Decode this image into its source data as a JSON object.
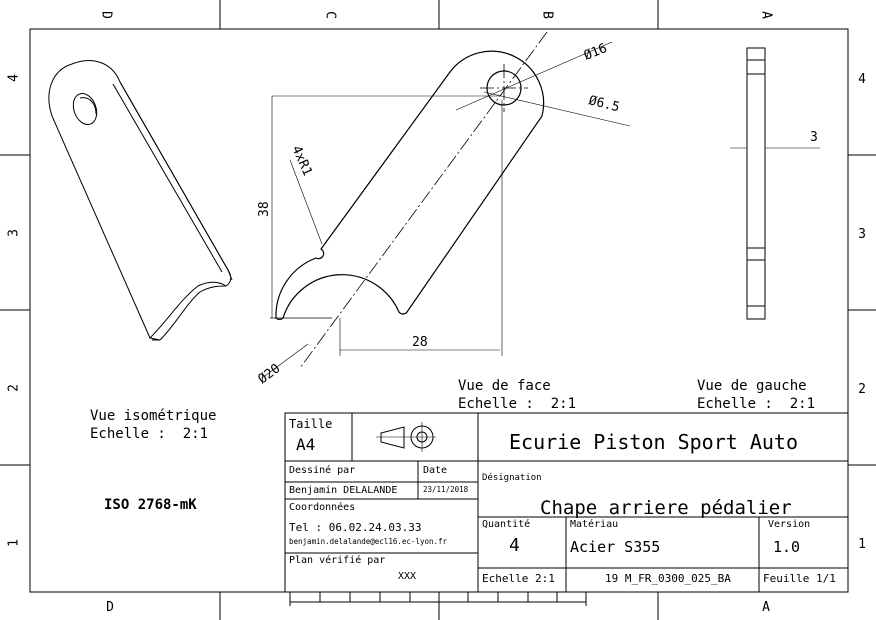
{
  "grid": {
    "columns_top": [
      "D",
      "C",
      "B",
      "A"
    ],
    "columns_bottom": [
      "D",
      "A"
    ],
    "rows_left": [
      "4",
      "3",
      "2",
      "1"
    ],
    "rows_right": [
      "4",
      "3",
      "2",
      "1"
    ]
  },
  "dimensions": {
    "d16": "Ø16",
    "d6_5": "Ø6.5",
    "thickness": "3",
    "radius": "4xR1",
    "height": "38",
    "width": "28",
    "d20": "Ø20"
  },
  "views": {
    "iso_title": "Vue isométrique",
    "iso_scale": "Echelle :  2:1",
    "front_title": "Vue de face",
    "front_scale": "Echelle :  2:1",
    "left_title": "Vue de gauche",
    "left_scale": "Echelle :  2:1"
  },
  "tolerance_note": "ISO 2768-mK",
  "title_block": {
    "taille_label": "Taille",
    "taille_value": "A4",
    "company": "Ecurie Piston Sport Auto",
    "drawn_by_label": "Dessiné par",
    "drawn_by_value": "Benjamin DELALANDE",
    "date_label": "Date",
    "date_value": "23/11/2018",
    "designation_label": "Désignation",
    "designation_value": "Chape arriere pédalier",
    "coords_label": "Coordonnées",
    "phone": "Tel : 06.02.24.03.33",
    "email": "benjamin.delalande@ecl16.ec-lyon.fr",
    "quantity_label": "Quantité",
    "quantity_value": "4",
    "material_label": "Matériau",
    "material_value": "Acier S355",
    "version_label": "Version",
    "version_value": "1.0",
    "checked_label": "Plan vérifié par",
    "checked_value": "XXX",
    "scale_value": "Echelle 2:1",
    "reference": "19 M_FR_0300_025_BA",
    "sheet": "Feuille 1/1"
  },
  "colors": {
    "line": "#000000",
    "background": "#ffffff"
  },
  "icons": [
    "projection-symbol-icon"
  ]
}
